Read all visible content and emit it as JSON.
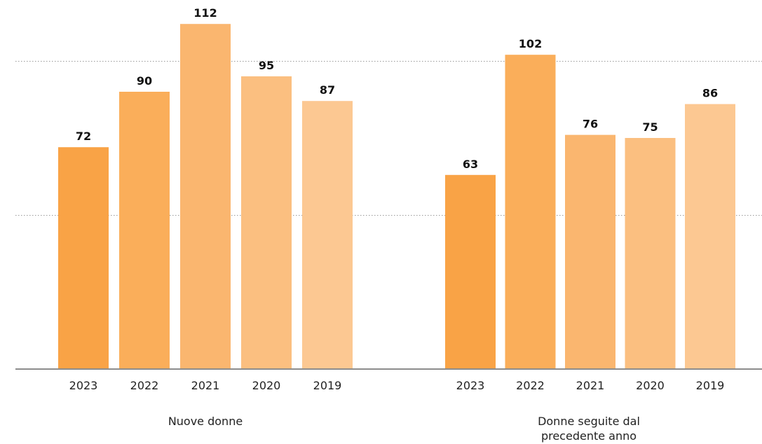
{
  "chart_data": {
    "type": "bar",
    "title": "",
    "xlabel": "",
    "ylabel": "",
    "ylim": [
      0,
      115
    ],
    "gridlines": [
      50,
      100
    ],
    "grid": true,
    "legend": "none",
    "colors": {
      "2023": "#F9A346",
      "2022": "#FAAE5A",
      "2021": "#FAB66F",
      "2020": "#FBBF80",
      "2019": "#FCC892"
    },
    "groups": [
      {
        "label": "Nuove donne",
        "label_lines": [
          "Nuove donne"
        ],
        "categories": [
          "2023",
          "2022",
          "2021",
          "2020",
          "2019"
        ],
        "values": [
          72,
          90,
          112,
          95,
          87
        ]
      },
      {
        "label": "Donne seguite dal precedente anno",
        "label_lines": [
          "Donne seguite dal",
          "precedente anno"
        ],
        "categories": [
          "2023",
          "2022",
          "2021",
          "2020",
          "2019"
        ],
        "values": [
          63,
          102,
          76,
          75,
          86
        ]
      }
    ]
  }
}
